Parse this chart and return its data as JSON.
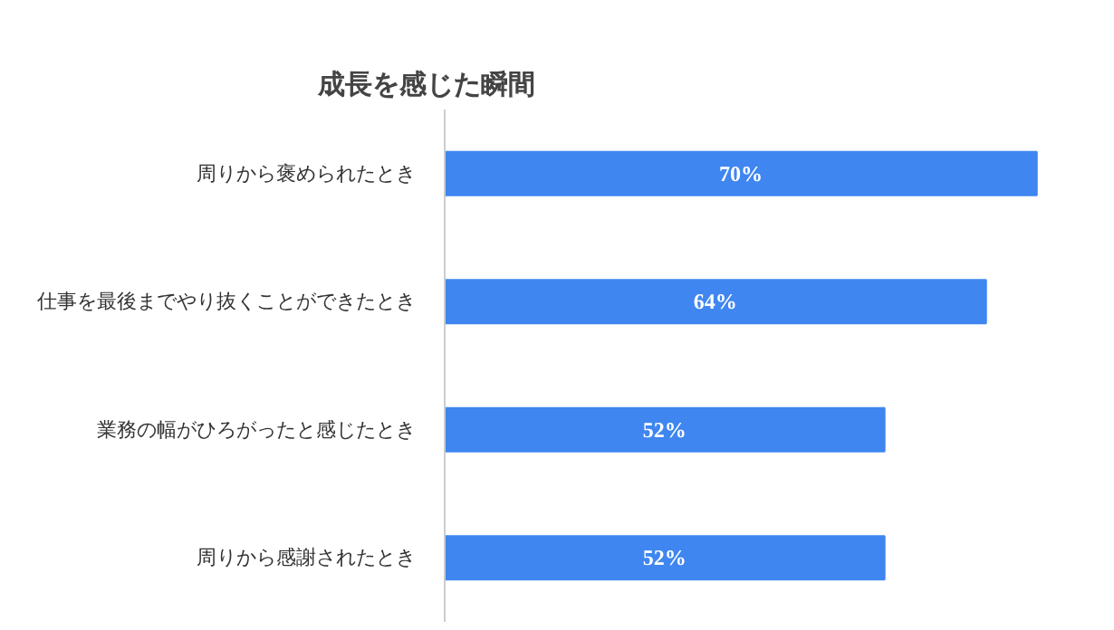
{
  "chart_data": {
    "type": "bar",
    "orientation": "horizontal",
    "title": "成長を感じた瞬間",
    "categories": [
      "周りから褒められたとき",
      "仕事を最後までやり抜くことができたとき",
      "業務の幅がひろがったと感じたとき",
      "周りから感謝されたとき"
    ],
    "values": [
      70,
      64,
      52,
      52
    ],
    "color": "#3f86f0",
    "value_labels": [
      "70%",
      "64%",
      "52%",
      "52%"
    ],
    "tick_labels": "y",
    "grid": false
  }
}
